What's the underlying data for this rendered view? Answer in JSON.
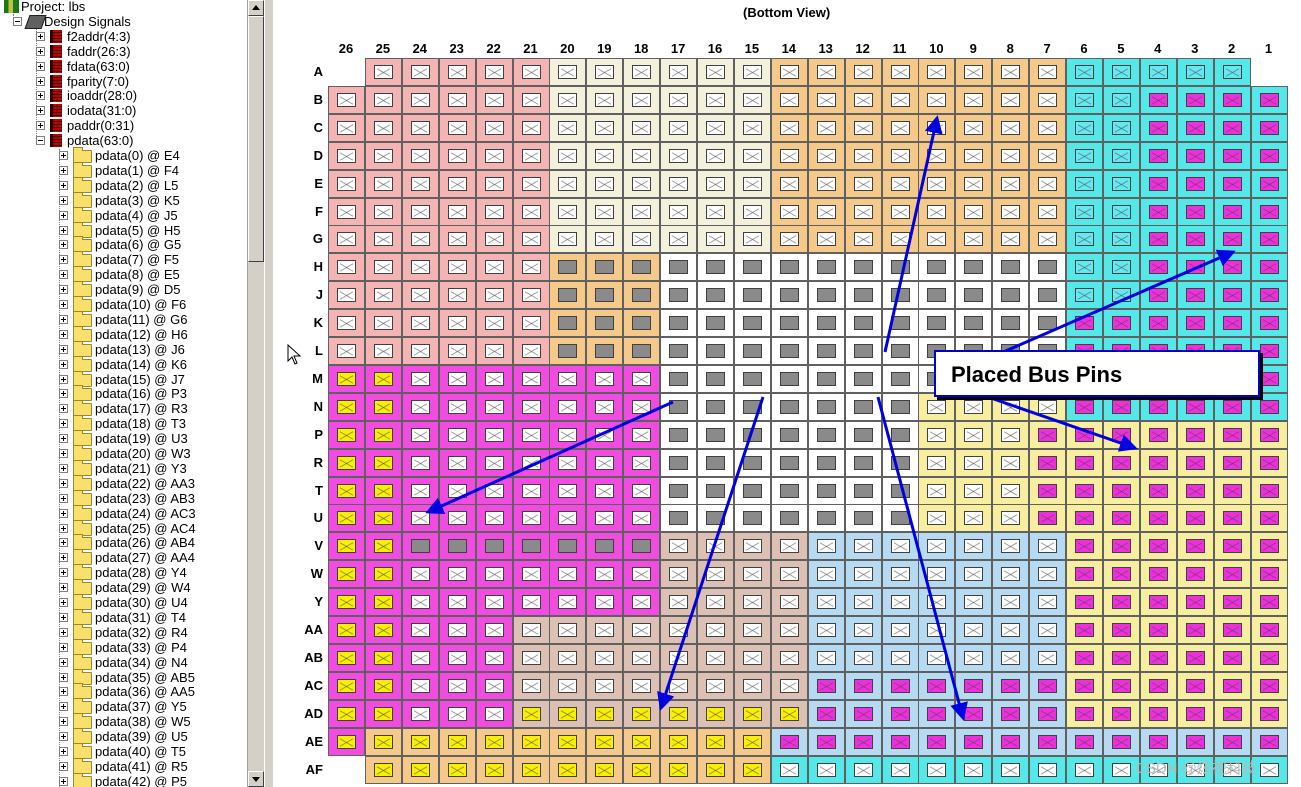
{
  "tree": {
    "project_label": "Project: lbs",
    "design_signals_label": "Design Signals",
    "buses": [
      "f2addr(4:3)",
      "faddr(26:3)",
      "fdata(63:0)",
      "fparity(7:0)",
      "ioaddr(28:0)",
      "iodata(31:0)",
      "paddr(0:31)",
      "pdata(63:0)"
    ],
    "pdata_items": [
      "pdata(0) @ E4",
      "pdata(1) @ F4",
      "pdata(2) @ L5",
      "pdata(3) @ K5",
      "pdata(4) @ J5",
      "pdata(5) @ H5",
      "pdata(6) @ G5",
      "pdata(7) @ F5",
      "pdata(8) @ E5",
      "pdata(9) @ D5",
      "pdata(10) @ F6",
      "pdata(11) @ G6",
      "pdata(12) @ H6",
      "pdata(13) @ J6",
      "pdata(14) @ K6",
      "pdata(15) @ J7",
      "pdata(16) @ P3",
      "pdata(17) @ R3",
      "pdata(18) @ T3",
      "pdata(19) @ U3",
      "pdata(20) @ W3",
      "pdata(21) @ Y3",
      "pdata(22) @ AA3",
      "pdata(23) @ AB3",
      "pdata(24) @ AC3",
      "pdata(25) @ AC4",
      "pdata(26) @ AB4",
      "pdata(27) @ AA4",
      "pdata(28) @ Y4",
      "pdata(29) @ W4",
      "pdata(30) @ U4",
      "pdata(31) @ T4",
      "pdata(32) @ R4",
      "pdata(33) @ P4",
      "pdata(34) @ N4",
      "pdata(35) @ AB5",
      "pdata(36) @ AA5",
      "pdata(37) @ Y5",
      "pdata(38) @ W5",
      "pdata(39) @ U5",
      "pdata(40) @ T5",
      "pdata(41) @ R5",
      "pdata(42) @ P5"
    ]
  },
  "package": {
    "view_title": "(Bottom View)",
    "columns": [
      "26",
      "25",
      "24",
      "23",
      "22",
      "21",
      "20",
      "19",
      "18",
      "17",
      "16",
      "15",
      "14",
      "13",
      "12",
      "11",
      "10",
      "9",
      "8",
      "7",
      "6",
      "5",
      "4",
      "3",
      "2",
      "1"
    ],
    "rows": [
      "A",
      "B",
      "C",
      "D",
      "E",
      "F",
      "G",
      "H",
      "J",
      "K",
      "L",
      "M",
      "N",
      "P",
      "R",
      "T",
      "U",
      "V",
      "W",
      "Y",
      "AA",
      "AB",
      "AC",
      "AD",
      "AE",
      "AF"
    ],
    "callout_label": "Placed Bus Pins",
    "colors": {
      "beige": "#f3f0dc",
      "salmon": "#f5b4b4",
      "orange": "#f5c98a",
      "cyan": "#55e8e8",
      "magenta": "#f04ce0",
      "yellow": "#f8eea0",
      "white": "#ffffff",
      "lightblue": "#b6daf2",
      "tan": "#ddc0b4",
      "gray_pin": "#8a8a8a",
      "cyan_pin": "#66e8f0",
      "magenta_pin": "#ee30dc",
      "yellow_pin": "#f8f000",
      "arrow": "#0000e0"
    }
  },
  "watermark": "CSDN @炫视科技"
}
